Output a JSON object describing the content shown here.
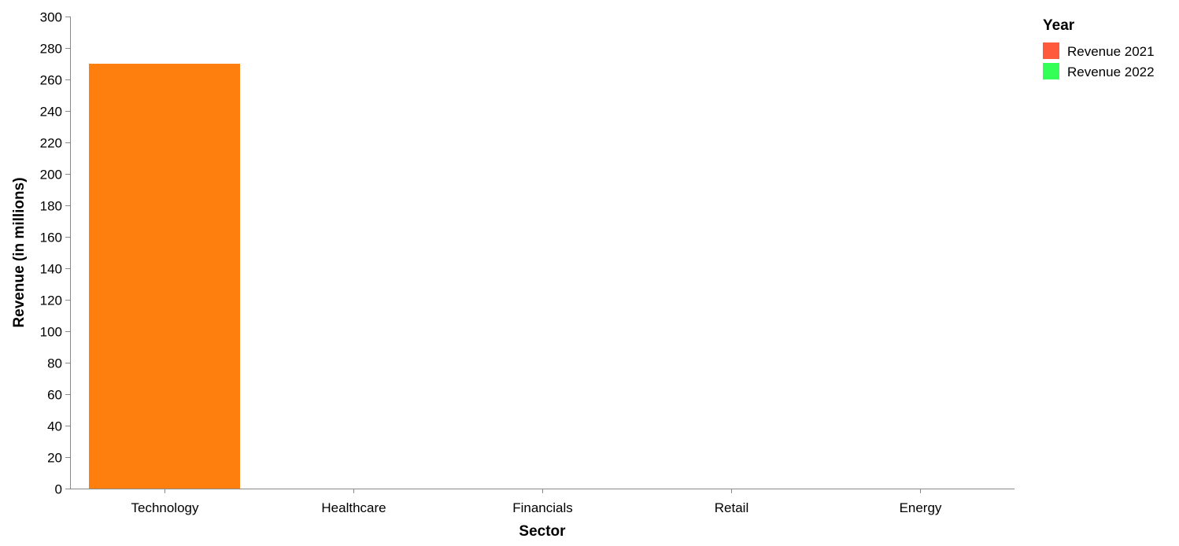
{
  "chart_data": {
    "type": "bar",
    "title": "",
    "xlabel": "Sector",
    "ylabel": "Revenue (in millions)",
    "categories": [
      "Technology",
      "Healthcare",
      "Financials",
      "Retail",
      "Energy"
    ],
    "ylim": [
      0,
      300
    ],
    "yticks": [
      0,
      20,
      40,
      60,
      80,
      100,
      120,
      140,
      160,
      180,
      200,
      220,
      240,
      260,
      280,
      300
    ],
    "grid": false,
    "legend": {
      "title": "Year",
      "placement": "top-right",
      "entries": [
        {
          "label": "Revenue 2021",
          "color": "#ff5a3c"
        },
        {
          "label": "Revenue 2022",
          "color": "#33ff57"
        }
      ]
    },
    "bars": [
      {
        "category": "Technology",
        "value": 270,
        "color": "#ff7f0e"
      }
    ]
  },
  "colors": {
    "axis": "#888888",
    "text": "#000000"
  }
}
